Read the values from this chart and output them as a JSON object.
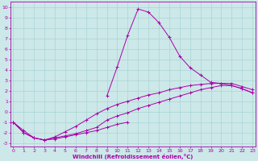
{
  "xlabel": "Windchill (Refroidissement éolien,°C)",
  "bg_color": "#cce8e8",
  "grid_color": "#aad4d4",
  "line_color": "#aa00aa",
  "x_values": [
    0,
    1,
    2,
    3,
    4,
    5,
    6,
    7,
    8,
    9,
    10,
    11,
    12,
    13,
    14,
    15,
    16,
    17,
    18,
    19,
    20,
    21,
    22,
    23
  ],
  "series1": [
    -1.0,
    -2.0,
    -2.5,
    -2.7,
    -2.6,
    -2.4,
    -2.2,
    -2.0,
    -1.8,
    -1.5,
    -1.2,
    -1.0,
    null,
    null,
    null,
    null,
    null,
    null,
    null,
    null,
    null,
    null,
    null,
    null
  ],
  "series2": [
    -1.0,
    -2.0,
    -2.5,
    -2.7,
    -2.5,
    -2.3,
    -2.1,
    -1.8,
    -1.5,
    -0.8,
    -0.4,
    -0.1,
    0.3,
    0.6,
    0.9,
    1.2,
    1.5,
    1.8,
    2.1,
    2.3,
    2.5,
    2.5,
    2.2,
    1.8
  ],
  "series3": [
    -1.0,
    -1.8,
    -2.5,
    -2.7,
    -2.4,
    -1.9,
    -1.4,
    -0.8,
    -0.2,
    0.3,
    0.7,
    1.0,
    1.3,
    1.6,
    1.8,
    2.1,
    2.3,
    2.5,
    2.6,
    2.7,
    2.7,
    2.7,
    2.4,
    2.1
  ],
  "series4": [
    -1.0,
    null,
    null,
    null,
    null,
    null,
    null,
    null,
    null,
    1.5,
    4.3,
    7.3,
    9.8,
    9.5,
    8.5,
    7.1,
    5.3,
    4.2,
    3.5,
    2.8,
    2.7,
    2.5,
    2.2,
    1.8
  ],
  "xlim": [
    -0.3,
    23.3
  ],
  "ylim": [
    -3.3,
    10.5
  ],
  "yticks": [
    -3,
    -2,
    -1,
    0,
    1,
    2,
    3,
    4,
    5,
    6,
    7,
    8,
    9,
    10
  ],
  "xticks": [
    0,
    1,
    2,
    3,
    4,
    5,
    6,
    7,
    8,
    9,
    10,
    11,
    12,
    13,
    14,
    15,
    16,
    17,
    18,
    19,
    20,
    21,
    22,
    23
  ],
  "tick_fontsize": 4.5,
  "xlabel_fontsize": 5.0
}
